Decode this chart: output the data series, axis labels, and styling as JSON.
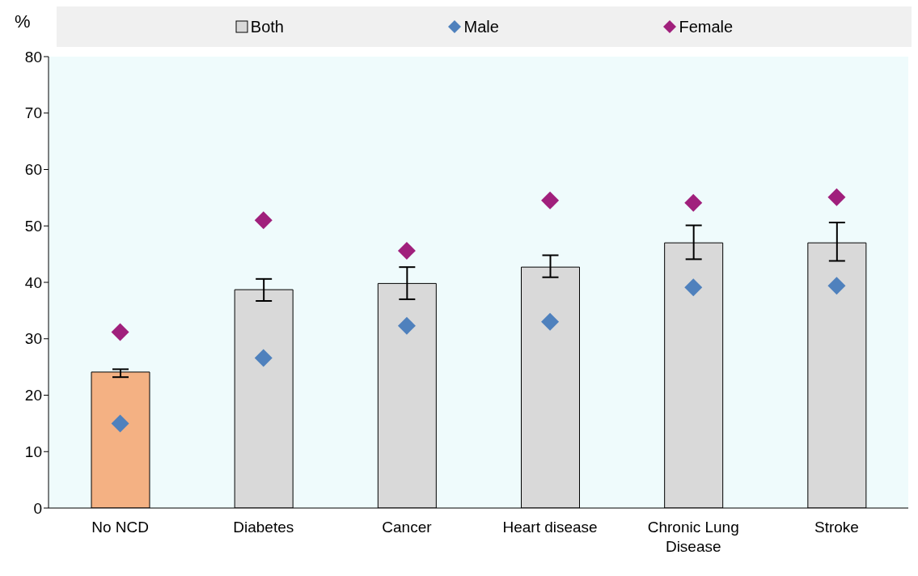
{
  "chart_data": {
    "type": "bar",
    "ylabel": "%",
    "categories": [
      "No NCD",
      "Diabetes",
      "Cancer",
      "Heart disease",
      "Chronic Lung Disease",
      "Stroke"
    ],
    "series": [
      {
        "name": "Both",
        "color": "#d9d9d9",
        "colors": [
          "#f4b183",
          "#d9d9d9",
          "#d9d9d9",
          "#d9d9d9",
          "#d9d9d9",
          "#d9d9d9"
        ],
        "values": [
          24.1,
          38.7,
          39.8,
          42.7,
          47.0,
          47.0
        ],
        "errors": [
          [
            23.2,
            24.6
          ],
          [
            36.7,
            40.6
          ],
          [
            37.0,
            42.7
          ],
          [
            40.9,
            44.8
          ],
          [
            44.1,
            50.1
          ],
          [
            43.8,
            50.6
          ]
        ]
      },
      {
        "name": "Male",
        "type": "scatter",
        "color": "#4f81bd",
        "values": [
          15.0,
          26.6,
          32.3,
          33.0,
          39.1,
          39.4
        ]
      },
      {
        "name": "Female",
        "type": "scatter",
        "color": "#a0207c",
        "values": [
          31.2,
          51.0,
          45.6,
          54.5,
          54.1,
          55.1
        ]
      }
    ],
    "marker": "diamond",
    "legend": "top",
    "ylim": [
      0,
      80
    ],
    "yticks": [
      0,
      10,
      20,
      30,
      40,
      50,
      60,
      70,
      80
    ]
  }
}
